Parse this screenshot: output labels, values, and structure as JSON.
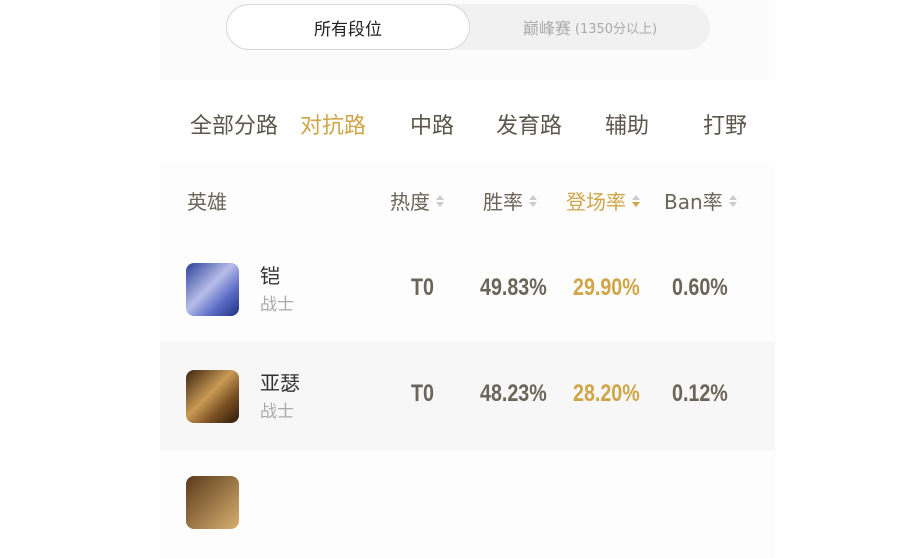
{
  "rank_toggle": {
    "all": "所有段位",
    "peak": "巅峰赛",
    "peak_note": "(1350分以上)"
  },
  "lanes": [
    {
      "label": "全部分路"
    },
    {
      "label": "对抗路",
      "active": true
    },
    {
      "label": "中路"
    },
    {
      "label": "发育路"
    },
    {
      "label": "辅助"
    },
    {
      "label": "打野"
    }
  ],
  "columns": {
    "hero": "英雄",
    "heat": "热度",
    "win": "胜率",
    "pick": "登场率",
    "ban": "Ban率",
    "sorted": "pick"
  },
  "colors": {
    "accent": "#cfa548",
    "text": "#6a6558"
  },
  "rows": [
    {
      "name": "铠",
      "role": "战士",
      "heat": "T0",
      "win": "49.83%",
      "pick": "29.90%",
      "ban": "0.60%",
      "avatar": "blue-hero-portrait"
    },
    {
      "name": "亚瑟",
      "role": "战士",
      "heat": "T0",
      "win": "48.23%",
      "pick": "28.20%",
      "ban": "0.12%",
      "avatar": "gold-hero-portrait"
    }
  ]
}
